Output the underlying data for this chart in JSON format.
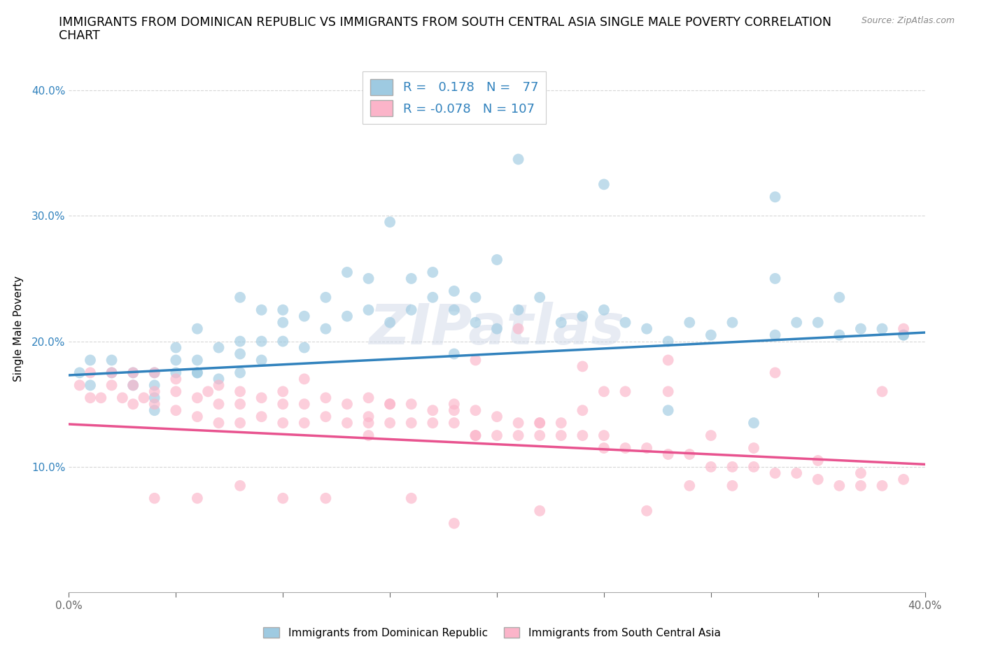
{
  "title_line1": "IMMIGRANTS FROM DOMINICAN REPUBLIC VS IMMIGRANTS FROM SOUTH CENTRAL ASIA SINGLE MALE POVERTY CORRELATION",
  "title_line2": "CHART",
  "source": "Source: ZipAtlas.com",
  "ylabel": "Single Male Poverty",
  "xlim": [
    0.0,
    0.4
  ],
  "ylim": [
    0.0,
    0.42
  ],
  "legend_label1": "Immigrants from Dominican Republic",
  "legend_label2": "Immigrants from South Central Asia",
  "R1": 0.178,
  "N1": 77,
  "R2": -0.078,
  "N2": 107,
  "color1": "#9ecae1",
  "color2": "#fbb4c9",
  "line_color1": "#3182bd",
  "line_color2": "#e8538f",
  "watermark": "ZIPatlas",
  "title_fontsize": 13,
  "axis_label_fontsize": 11,
  "tick_fontsize": 11,
  "scatter1_x": [
    0.005,
    0.01,
    0.01,
    0.02,
    0.02,
    0.03,
    0.03,
    0.04,
    0.04,
    0.04,
    0.04,
    0.05,
    0.05,
    0.05,
    0.06,
    0.06,
    0.06,
    0.07,
    0.07,
    0.08,
    0.08,
    0.08,
    0.09,
    0.09,
    0.1,
    0.1,
    0.1,
    0.11,
    0.11,
    0.12,
    0.12,
    0.13,
    0.13,
    0.14,
    0.14,
    0.15,
    0.16,
    0.16,
    0.17,
    0.17,
    0.18,
    0.18,
    0.19,
    0.19,
    0.2,
    0.21,
    0.22,
    0.23,
    0.24,
    0.25,
    0.26,
    0.27,
    0.28,
    0.29,
    0.3,
    0.31,
    0.33,
    0.34,
    0.35,
    0.36,
    0.37,
    0.38,
    0.39,
    0.39,
    0.33,
    0.21,
    0.15,
    0.09,
    0.08,
    0.06,
    0.25,
    0.33,
    0.36,
    0.28,
    0.32,
    0.18,
    0.2
  ],
  "scatter1_y": [
    0.175,
    0.165,
    0.185,
    0.175,
    0.185,
    0.165,
    0.175,
    0.145,
    0.155,
    0.165,
    0.175,
    0.175,
    0.185,
    0.195,
    0.175,
    0.185,
    0.21,
    0.17,
    0.195,
    0.175,
    0.19,
    0.2,
    0.185,
    0.2,
    0.2,
    0.215,
    0.225,
    0.195,
    0.22,
    0.21,
    0.235,
    0.22,
    0.255,
    0.225,
    0.25,
    0.215,
    0.225,
    0.25,
    0.235,
    0.255,
    0.24,
    0.19,
    0.235,
    0.215,
    0.265,
    0.225,
    0.235,
    0.215,
    0.22,
    0.225,
    0.215,
    0.21,
    0.2,
    0.215,
    0.205,
    0.215,
    0.205,
    0.215,
    0.215,
    0.205,
    0.21,
    0.21,
    0.205,
    0.205,
    0.315,
    0.345,
    0.295,
    0.225,
    0.235,
    0.175,
    0.325,
    0.25,
    0.235,
    0.145,
    0.135,
    0.225,
    0.21
  ],
  "scatter2_x": [
    0.005,
    0.01,
    0.01,
    0.015,
    0.02,
    0.02,
    0.025,
    0.03,
    0.03,
    0.03,
    0.035,
    0.04,
    0.04,
    0.04,
    0.05,
    0.05,
    0.05,
    0.06,
    0.06,
    0.065,
    0.07,
    0.07,
    0.07,
    0.08,
    0.08,
    0.08,
    0.09,
    0.09,
    0.1,
    0.1,
    0.1,
    0.11,
    0.11,
    0.12,
    0.12,
    0.13,
    0.13,
    0.14,
    0.14,
    0.15,
    0.15,
    0.16,
    0.16,
    0.17,
    0.17,
    0.18,
    0.18,
    0.19,
    0.19,
    0.2,
    0.2,
    0.21,
    0.21,
    0.22,
    0.22,
    0.23,
    0.23,
    0.24,
    0.25,
    0.25,
    0.26,
    0.27,
    0.28,
    0.29,
    0.3,
    0.31,
    0.32,
    0.33,
    0.34,
    0.35,
    0.36,
    0.37,
    0.38,
    0.39,
    0.39,
    0.38,
    0.29,
    0.22,
    0.18,
    0.11,
    0.06,
    0.04,
    0.24,
    0.26,
    0.3,
    0.32,
    0.14,
    0.19,
    0.28,
    0.35,
    0.37,
    0.24,
    0.31,
    0.27,
    0.22,
    0.18,
    0.16,
    0.12,
    0.1,
    0.08,
    0.14,
    0.21,
    0.25,
    0.33,
    0.28,
    0.19,
    0.15
  ],
  "scatter2_y": [
    0.165,
    0.155,
    0.175,
    0.155,
    0.165,
    0.175,
    0.155,
    0.15,
    0.165,
    0.175,
    0.155,
    0.15,
    0.16,
    0.175,
    0.145,
    0.16,
    0.17,
    0.14,
    0.155,
    0.16,
    0.135,
    0.15,
    0.165,
    0.135,
    0.15,
    0.16,
    0.14,
    0.155,
    0.135,
    0.15,
    0.16,
    0.135,
    0.15,
    0.14,
    0.155,
    0.135,
    0.15,
    0.14,
    0.155,
    0.135,
    0.15,
    0.135,
    0.15,
    0.135,
    0.145,
    0.135,
    0.145,
    0.125,
    0.145,
    0.125,
    0.14,
    0.125,
    0.135,
    0.125,
    0.135,
    0.125,
    0.135,
    0.125,
    0.115,
    0.125,
    0.115,
    0.115,
    0.11,
    0.11,
    0.1,
    0.1,
    0.1,
    0.095,
    0.095,
    0.09,
    0.085,
    0.085,
    0.085,
    0.09,
    0.21,
    0.16,
    0.085,
    0.135,
    0.15,
    0.17,
    0.075,
    0.075,
    0.18,
    0.16,
    0.125,
    0.115,
    0.125,
    0.185,
    0.16,
    0.105,
    0.095,
    0.145,
    0.085,
    0.065,
    0.065,
    0.055,
    0.075,
    0.075,
    0.075,
    0.085,
    0.135,
    0.21,
    0.16,
    0.175,
    0.185,
    0.125,
    0.15
  ]
}
